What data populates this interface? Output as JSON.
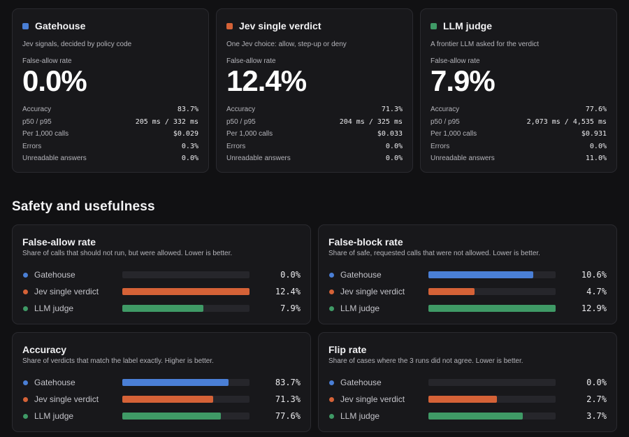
{
  "colors": {
    "gatehouse": "#4a7fd6",
    "jev": "#d56237",
    "llm": "#3f9a66"
  },
  "cards": [
    {
      "title": "Gatehouse",
      "color": "#4a7fd6",
      "description": "Jev signals, decided by policy code",
      "metric_label": "False-allow rate",
      "metric_value": "0.0%",
      "stats": [
        {
          "label": "Accuracy",
          "value": "83.7%"
        },
        {
          "label": "p50 / p95",
          "value": "205 ms / 332 ms"
        },
        {
          "label": "Per 1,000 calls",
          "value": "$0.029"
        },
        {
          "label": "Errors",
          "value": "0.3%"
        },
        {
          "label": "Unreadable answers",
          "value": "0.0%"
        }
      ]
    },
    {
      "title": "Jev single verdict",
      "color": "#d56237",
      "description": "One Jev choice: allow, step-up or deny",
      "metric_label": "False-allow rate",
      "metric_value": "12.4%",
      "stats": [
        {
          "label": "Accuracy",
          "value": "71.3%"
        },
        {
          "label": "p50 / p95",
          "value": "204 ms / 325 ms"
        },
        {
          "label": "Per 1,000 calls",
          "value": "$0.033"
        },
        {
          "label": "Errors",
          "value": "0.0%"
        },
        {
          "label": "Unreadable answers",
          "value": "0.0%"
        }
      ]
    },
    {
      "title": "LLM judge",
      "color": "#3f9a66",
      "description": "A frontier LLM asked for the verdict",
      "metric_label": "False-allow rate",
      "metric_value": "7.9%",
      "stats": [
        {
          "label": "Accuracy",
          "value": "77.6%"
        },
        {
          "label": "p50 / p95",
          "value": "2,073 ms / 4,535 ms"
        },
        {
          "label": "Per 1,000 calls",
          "value": "$0.931"
        },
        {
          "label": "Errors",
          "value": "0.0%"
        },
        {
          "label": "Unreadable answers",
          "value": "11.0%"
        }
      ]
    }
  ],
  "section_title": "Safety and usefulness",
  "chart_data": [
    {
      "type": "bar",
      "title": "False-allow rate",
      "subtitle": "Share of calls that should not run, but were allowed. Lower is better.",
      "categories": [
        "Gatehouse",
        "Jev single verdict",
        "LLM judge"
      ],
      "values": [
        0.0,
        12.4,
        7.9
      ],
      "value_labels": [
        "0.0%",
        "12.4%",
        "7.9%"
      ],
      "max": 12.4
    },
    {
      "type": "bar",
      "title": "False-block rate",
      "subtitle": "Share of safe, requested calls that were not allowed. Lower is better.",
      "categories": [
        "Gatehouse",
        "Jev single verdict",
        "LLM judge"
      ],
      "values": [
        10.6,
        4.7,
        12.9
      ],
      "value_labels": [
        "10.6%",
        "4.7%",
        "12.9%"
      ],
      "max": 12.9
    },
    {
      "type": "bar",
      "title": "Accuracy",
      "subtitle": "Share of verdicts that match the label exactly. Higher is better.",
      "categories": [
        "Gatehouse",
        "Jev single verdict",
        "LLM judge"
      ],
      "values": [
        83.7,
        71.3,
        77.6
      ],
      "value_labels": [
        "83.7%",
        "71.3%",
        "77.6%"
      ],
      "max": 100
    },
    {
      "type": "bar",
      "title": "Flip rate",
      "subtitle": "Share of cases where the 3 runs did not agree. Lower is better.",
      "categories": [
        "Gatehouse",
        "Jev single verdict",
        "LLM judge"
      ],
      "values": [
        0.0,
        2.7,
        3.7
      ],
      "value_labels": [
        "0.0%",
        "2.7%",
        "3.7%"
      ],
      "max": 5
    }
  ]
}
